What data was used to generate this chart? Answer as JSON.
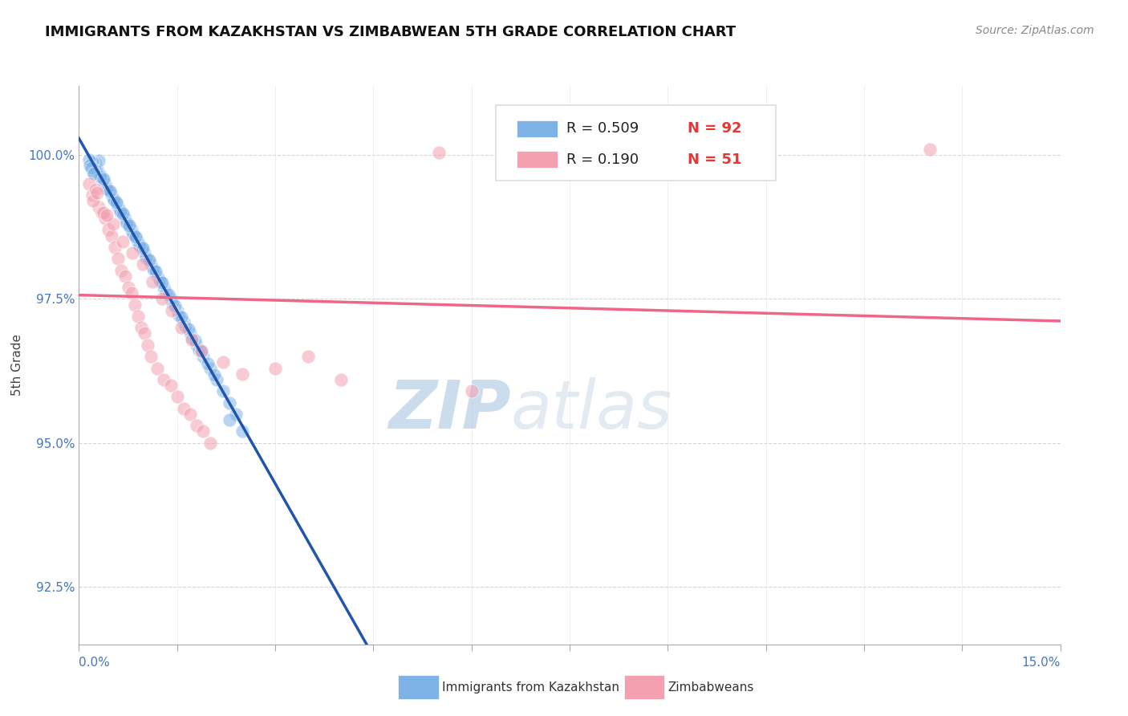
{
  "title": "IMMIGRANTS FROM KAZAKHSTAN VS ZIMBABWEAN 5TH GRADE CORRELATION CHART",
  "source": "Source: ZipAtlas.com",
  "ylabel": "5th Grade",
  "xmin": 0.0,
  "xmax": 15.0,
  "ymin": 91.5,
  "ymax": 101.2,
  "yticks": [
    92.5,
    95.0,
    97.5,
    100.0
  ],
  "ytick_labels": [
    "92.5%",
    "95.0%",
    "97.5%",
    "100.0%"
  ],
  "watermark_zip": "ZIP",
  "watermark_atlas": "atlas",
  "legend_blue_R": "R = 0.509",
  "legend_blue_N": "N = 92",
  "legend_pink_R": "R = 0.190",
  "legend_pink_N": "N = 51",
  "blue_color": "#7EB3E8",
  "pink_color": "#F4A0B0",
  "blue_line_color": "#2255AA",
  "pink_line_color": "#EE6688",
  "watermark_zip_color": "#99BBDD",
  "watermark_atlas_color": "#BBCCDD",
  "grid_color": "#CCCCCC",
  "tick_color": "#4477BB",
  "scatter_blue_x": [
    0.18,
    0.22,
    0.25,
    0.28,
    0.3,
    0.32,
    0.35,
    0.38,
    0.4,
    0.42,
    0.45,
    0.48,
    0.5,
    0.52,
    0.55,
    0.58,
    0.6,
    0.62,
    0.65,
    0.68,
    0.7,
    0.72,
    0.75,
    0.78,
    0.8,
    0.82,
    0.85,
    0.88,
    0.9,
    0.92,
    0.95,
    0.98,
    1.0,
    1.05,
    1.1,
    1.15,
    1.2,
    1.25,
    1.3,
    1.4,
    1.5,
    1.6,
    1.7,
    1.8,
    1.9,
    2.0,
    2.1,
    2.2,
    2.3,
    2.4,
    0.2,
    0.27,
    0.33,
    0.43,
    0.53,
    0.63,
    0.73,
    0.83,
    0.93,
    1.03,
    1.13,
    1.23,
    1.33,
    1.43,
    1.53,
    1.63,
    1.73,
    1.83,
    2.3,
    2.5,
    0.15,
    0.17,
    0.19,
    0.23,
    0.37,
    0.47,
    0.57,
    0.67,
    0.77,
    0.87,
    0.97,
    1.07,
    1.17,
    1.27,
    1.37,
    1.47,
    1.57,
    1.67,
    1.77,
    1.87,
    1.97,
    2.07
  ],
  "scatter_blue_y": [
    99.8,
    99.7,
    99.85,
    99.75,
    99.9,
    99.65,
    99.6,
    99.55,
    99.5,
    99.45,
    99.4,
    99.35,
    99.3,
    99.25,
    99.2,
    99.15,
    99.1,
    99.05,
    99.0,
    98.95,
    98.9,
    98.85,
    98.8,
    98.75,
    98.7,
    98.65,
    98.6,
    98.55,
    98.5,
    98.45,
    98.4,
    98.35,
    98.3,
    98.2,
    98.1,
    98.0,
    97.9,
    97.8,
    97.7,
    97.5,
    97.3,
    97.1,
    96.9,
    96.7,
    96.5,
    96.3,
    96.1,
    95.9,
    95.7,
    95.5,
    99.88,
    99.72,
    99.62,
    99.42,
    99.22,
    99.02,
    98.82,
    98.62,
    98.42,
    98.22,
    98.02,
    97.82,
    97.62,
    97.42,
    97.22,
    97.02,
    96.82,
    96.62,
    95.4,
    95.2,
    99.92,
    99.82,
    99.78,
    99.68,
    99.58,
    99.38,
    99.18,
    98.98,
    98.78,
    98.58,
    98.38,
    98.18,
    97.98,
    97.78,
    97.58,
    97.38,
    97.18,
    96.98,
    96.78,
    96.58,
    96.38,
    96.18
  ],
  "scatter_pink_x": [
    0.15,
    0.2,
    0.25,
    0.3,
    0.35,
    0.4,
    0.45,
    0.5,
    0.55,
    0.6,
    0.65,
    0.7,
    0.75,
    0.8,
    0.85,
    0.9,
    0.95,
    1.0,
    1.05,
    1.1,
    1.2,
    1.3,
    1.4,
    1.5,
    1.6,
    1.7,
    1.8,
    1.9,
    2.0,
    2.2,
    2.5,
    3.5,
    5.5,
    0.22,
    0.37,
    0.52,
    0.67,
    0.82,
    0.97,
    1.12,
    1.27,
    1.42,
    1.57,
    1.72,
    1.87,
    3.0,
    4.0,
    6.0,
    13.0,
    0.28,
    0.43
  ],
  "scatter_pink_y": [
    99.5,
    99.3,
    99.4,
    99.1,
    99.0,
    98.9,
    98.7,
    98.6,
    98.4,
    98.2,
    98.0,
    97.9,
    97.7,
    97.6,
    97.4,
    97.2,
    97.0,
    96.9,
    96.7,
    96.5,
    96.3,
    96.1,
    96.0,
    95.8,
    95.6,
    95.5,
    95.3,
    95.2,
    95.0,
    96.4,
    96.2,
    96.5,
    100.05,
    99.2,
    99.0,
    98.8,
    98.5,
    98.3,
    98.1,
    97.8,
    97.5,
    97.3,
    97.0,
    96.8,
    96.6,
    96.3,
    96.1,
    95.9,
    100.1,
    99.35,
    98.95
  ]
}
